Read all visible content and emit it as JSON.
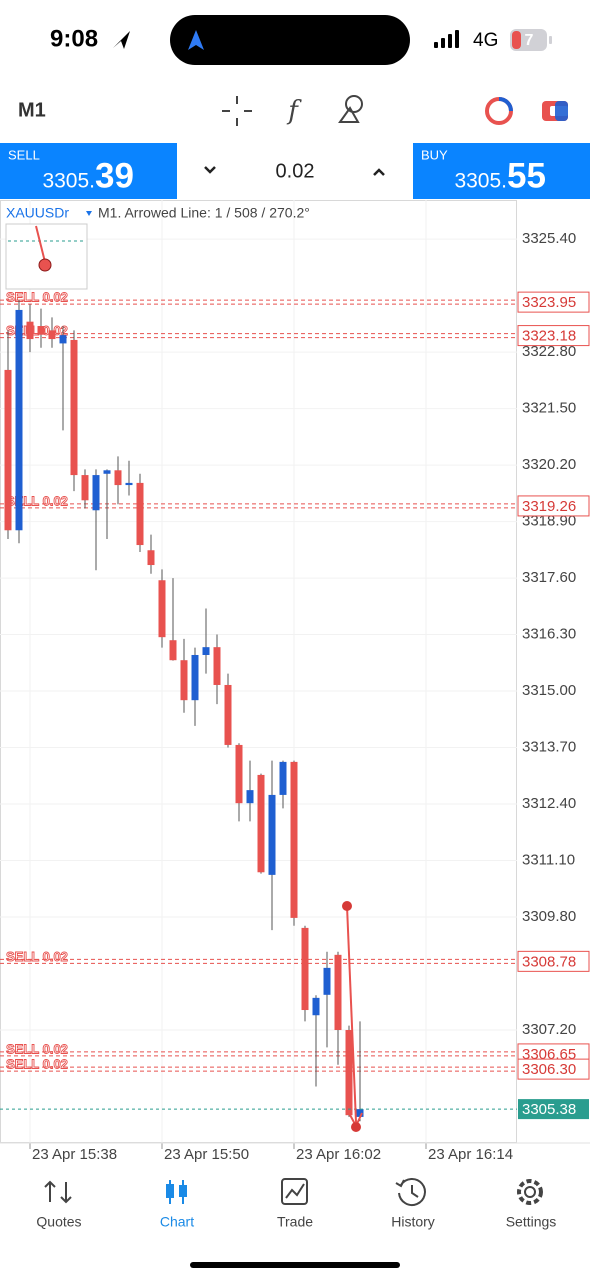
{
  "status_bar": {
    "time": "9:08",
    "network": "4G",
    "battery": "7"
  },
  "toolbar": {
    "timeframe": "M1"
  },
  "trade_panel": {
    "sell_label": "SELL",
    "sell_price_main": "3305.",
    "sell_price_big": "39",
    "volume": "0.02",
    "buy_label": "BUY",
    "buy_price_main": "3305.",
    "buy_price_big": "55"
  },
  "chart_data": {
    "type": "candlestick",
    "symbol": "XAUUSDr",
    "info": "M1. Arrowed Line: 1 / 508 / 270.2°",
    "up_color": "#1f5fd1",
    "down_color": "#e8524f",
    "grid": true,
    "ylim": [
      3304.6,
      3326.3
    ],
    "yticks": [
      {
        "value": 3325.4,
        "label": "3325.40"
      },
      {
        "value": 3322.8,
        "label": "3322.80"
      },
      {
        "value": 3321.5,
        "label": "3321.50"
      },
      {
        "value": 3320.2,
        "label": "3320.20"
      },
      {
        "value": 3318.9,
        "label": "3318.90"
      },
      {
        "value": 3317.6,
        "label": "3317.60"
      },
      {
        "value": 3316.3,
        "label": "3316.30"
      },
      {
        "value": 3315.0,
        "label": "3315.00"
      },
      {
        "value": 3313.7,
        "label": "3313.70"
      },
      {
        "value": 3312.4,
        "label": "3312.40"
      },
      {
        "value": 3311.1,
        "label": "3311.10"
      },
      {
        "value": 3309.8,
        "label": "3309.80"
      },
      {
        "value": 3307.2,
        "label": "3307.20"
      }
    ],
    "categories": [
      null,
      null,
      "23 Apr 15:38",
      null,
      null,
      null,
      null,
      null,
      null,
      null,
      null,
      null,
      null,
      null,
      "23 Apr 15:50",
      null,
      null,
      null,
      null,
      null,
      null,
      null,
      null,
      null,
      null,
      null,
      "23 Apr 16:02",
      null,
      null,
      null,
      null,
      null,
      null,
      null,
      null,
      null,
      null,
      null,
      "23 Apr 16:14",
      null
    ],
    "open": [
      3322.39,
      3318.7,
      3323.5,
      3323.4,
      3323.3,
      3323.0,
      3323.08,
      3319.97,
      3319.16,
      3320.0,
      3320.08,
      3319.74,
      3319.79,
      3318.24,
      3317.55,
      3316.17,
      3315.71,
      3314.79,
      3315.83,
      3316.01,
      3315.14,
      3313.76,
      3312.42,
      3313.07,
      3310.77,
      3312.61,
      3313.37,
      3309.55,
      3307.54,
      3308.01,
      3308.93,
      3307.2,
      3305.2,
      null,
      null,
      null,
      null,
      null,
      null,
      null
    ],
    "high": [
      3323.3,
      3324.0,
      3323.9,
      3323.8,
      3323.6,
      3323.4,
      3323.3,
      3320.1,
      3320.1,
      3320.1,
      3320.4,
      3320.3,
      3320.0,
      3318.6,
      3317.8,
      3317.6,
      3316.2,
      3316.0,
      3316.9,
      3316.3,
      3315.4,
      3313.8,
      3313.4,
      3313.1,
      3313.4,
      3313.4,
      3313.4,
      3309.6,
      3308.0,
      3309.0,
      3309.0,
      3307.3,
      3307.4,
      null,
      null,
      null,
      null,
      null,
      null,
      null
    ],
    "low": [
      3318.5,
      3318.4,
      3322.8,
      3322.9,
      3322.9,
      3321.0,
      3319.6,
      3319.2,
      3317.78,
      3318.5,
      3319.3,
      3319.5,
      3318.2,
      3317.7,
      3316.0,
      3315.7,
      3314.5,
      3314.2,
      3315.4,
      3314.7,
      3313.7,
      3312.0,
      3312.0,
      3310.8,
      3309.5,
      3312.3,
      3309.6,
      3307.4,
      3305.9,
      3306.8,
      3306.4,
      3305.2,
      3305.1,
      null,
      null,
      null,
      null,
      null,
      null,
      null
    ],
    "close": [
      3318.7,
      3323.77,
      3323.1,
      3323.2,
      3323.1,
      3323.19,
      3319.97,
      3319.39,
      3319.97,
      3320.08,
      3319.74,
      3319.79,
      3318.36,
      3317.9,
      3316.24,
      3315.71,
      3314.79,
      3315.83,
      3316.01,
      3315.14,
      3313.76,
      3312.42,
      3312.72,
      3310.83,
      3312.61,
      3313.37,
      3309.78,
      3307.66,
      3307.94,
      3308.63,
      3307.2,
      3305.24,
      3305.38,
      null,
      null,
      null,
      null,
      null,
      null,
      null
    ],
    "orders": {
      "name": "SELL 0.02",
      "color": "#e8524f",
      "values": [
        3323.95,
        3323.18,
        3319.26,
        3308.78,
        3306.65,
        3306.3
      ],
      "value_labels": [
        "3323.95",
        "3323.18",
        "3319.26",
        "3308.78",
        "3306.65",
        "3306.30"
      ]
    },
    "current_price": {
      "value": 3305.38,
      "label": "3305.38",
      "color": "#2a9d8f"
    }
  },
  "tab_bar": {
    "tabs": [
      "Quotes",
      "Chart",
      "Trade",
      "History",
      "Settings"
    ],
    "active": 1
  }
}
